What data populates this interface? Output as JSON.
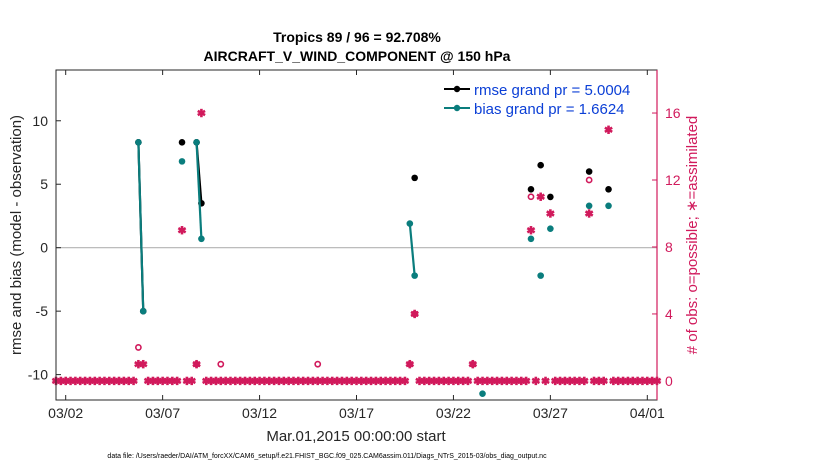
{
  "chart_data": {
    "type": "scatter",
    "title_line1": "Tropics 89 / 96 = 92.708%",
    "title_line2": "AIRCRAFT_V_WIND_COMPONENT @ 150 hPa",
    "xlabel": "Mar.01,2015 00:00:00 start",
    "ylabel_left": "rmse and bias (model - observation)",
    "ylabel_right": "# of obs: o=possible; ∗=assimilated",
    "xlim": [
      0.5,
      31.5
    ],
    "ylim_left": [
      -12,
      14
    ],
    "ylim_right": [
      -1.14,
      18.57
    ],
    "x_ticks": [
      {
        "v": 1,
        "label": "03/02"
      },
      {
        "v": 6,
        "label": "03/07"
      },
      {
        "v": 11,
        "label": "03/12"
      },
      {
        "v": 16,
        "label": "03/17"
      },
      {
        "v": 21,
        "label": "03/22"
      },
      {
        "v": 26,
        "label": "03/27"
      },
      {
        "v": 31,
        "label": "04/01"
      }
    ],
    "y_ticks_left": [
      {
        "v": 10,
        "label": "10"
      },
      {
        "v": 5,
        "label": "5"
      },
      {
        "v": 0,
        "label": "0"
      },
      {
        "v": -5,
        "label": "-5"
      },
      {
        "v": -10,
        "label": "-10"
      }
    ],
    "y_ticks_right": [
      {
        "v": 16,
        "label": "16"
      },
      {
        "v": 12,
        "label": "12"
      },
      {
        "v": 8,
        "label": "8"
      },
      {
        "v": 4,
        "label": "4"
      },
      {
        "v": 0,
        "label": "0"
      }
    ],
    "zero_line": 0,
    "colors": {
      "rmse": "#000000",
      "bias": "#0a7d7d",
      "obs": "#d11a5c",
      "zero": "#b3b3b3",
      "axis": "#262626",
      "legend_text": "#0b3fd6"
    },
    "legend": {
      "rmse_label": "rmse grand pr = 5.0004",
      "bias_label": "bias grand pr = 1.6624",
      "position": "top-right"
    },
    "series": [
      {
        "name": "rmse",
        "segments": [
          [
            {
              "x": 4.75,
              "y": 8.3
            },
            {
              "x": 5.0,
              "y": -5.0
            }
          ],
          [
            {
              "x": 7.75,
              "y": 8.3
            },
            {
              "x": 8.0,
              "y": 3.5
            }
          ]
        ],
        "points": [
          {
            "x": 7.0,
            "y": 8.3
          },
          {
            "x": 19.0,
            "y": 5.5
          },
          {
            "x": 25.0,
            "y": 4.6
          },
          {
            "x": 25.5,
            "y": 6.5
          },
          {
            "x": 26.0,
            "y": 4.0
          },
          {
            "x": 28.0,
            "y": 6.0
          },
          {
            "x": 29.0,
            "y": 4.6
          }
        ]
      },
      {
        "name": "bias",
        "segments": [
          [
            {
              "x": 4.75,
              "y": 8.3
            },
            {
              "x": 5.0,
              "y": -5.0
            }
          ],
          [
            {
              "x": 7.75,
              "y": 8.3
            },
            {
              "x": 8.0,
              "y": 0.7
            }
          ],
          [
            {
              "x": 18.75,
              "y": 1.9
            },
            {
              "x": 19.0,
              "y": -2.2
            }
          ]
        ],
        "points": [
          {
            "x": 7.0,
            "y": 6.8
          },
          {
            "x": 22.5,
            "y": -11.5
          },
          {
            "x": 25.0,
            "y": 0.7
          },
          {
            "x": 25.5,
            "y": -2.2
          },
          {
            "x": 26.0,
            "y": 1.5
          },
          {
            "x": 28.0,
            "y": 3.3
          },
          {
            "x": 29.0,
            "y": 3.3
          }
        ]
      },
      {
        "name": "possible",
        "points": [
          {
            "x": 4.75,
            "y": 2
          },
          {
            "x": 7.75,
            "y": 1
          },
          {
            "x": 9.0,
            "y": 1
          },
          {
            "x": 14.0,
            "y": 1
          },
          {
            "x": 18.75,
            "y": 1
          },
          {
            "x": 19.0,
            "y": 4
          },
          {
            "x": 22.0,
            "y": 1
          },
          {
            "x": 25.0,
            "y": 11
          },
          {
            "x": 28.0,
            "y": 12
          }
        ]
      },
      {
        "name": "assimilated",
        "x_start": 0.5,
        "x_end": 31.5,
        "x_step": 0.25,
        "baseline": 0,
        "points": [
          {
            "x": 4.75,
            "y": 1
          },
          {
            "x": 5.0,
            "y": 1
          },
          {
            "x": 7.0,
            "y": 9
          },
          {
            "x": 7.75,
            "y": 1
          },
          {
            "x": 8.0,
            "y": 16
          },
          {
            "x": 18.75,
            "y": 1
          },
          {
            "x": 19.0,
            "y": 4
          },
          {
            "x": 22.0,
            "y": 1
          },
          {
            "x": 25.0,
            "y": 9
          },
          {
            "x": 25.5,
            "y": 11
          },
          {
            "x": 26.0,
            "y": 10
          },
          {
            "x": 28.0,
            "y": 10
          },
          {
            "x": 29.0,
            "y": 15
          }
        ]
      }
    ]
  },
  "footer": {
    "data_file": "data file: /Users/raeder/DAI/ATM_forcXX/CAM6_setup/f.e21.FHIST_BGC.f09_025.CAM6assim.011/Diags_NTrS_2015-03/obs_diag_output.nc"
  }
}
